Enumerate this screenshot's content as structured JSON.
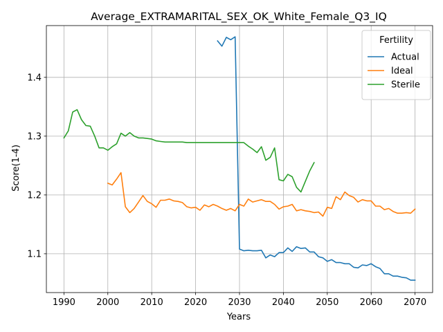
{
  "chart_data": {
    "type": "line",
    "title": "Average_EXTRAMARITAL_SEX_OK_White_Female_Q3_IQ",
    "xlabel": "Years",
    "ylabel": "Score(1-4)",
    "xlim": [
      1986,
      2074
    ],
    "ylim": [
      1.034,
      1.488
    ],
    "x_ticks": [
      1990,
      2000,
      2010,
      2020,
      2030,
      2040,
      2050,
      2060,
      2070
    ],
    "y_ticks": [
      1.1,
      1.2,
      1.3,
      1.4
    ],
    "y_tick_labels": [
      "1.1",
      "1.2",
      "1.3",
      "1.4"
    ],
    "grid": true,
    "legend": {
      "title": "Fertility",
      "position": "top-right"
    },
    "series": [
      {
        "name": "Actual",
        "color": "#1f77b4",
        "x": [
          2025,
          2026,
          2027,
          2028,
          2029,
          2030,
          2031,
          2032,
          2033,
          2034,
          2035,
          2036,
          2037,
          2038,
          2039,
          2040,
          2041,
          2042,
          2043,
          2044,
          2045,
          2046,
          2047,
          2048,
          2049,
          2050,
          2051,
          2052,
          2053,
          2054,
          2055,
          2056,
          2057,
          2058,
          2059,
          2060,
          2061,
          2062,
          2063,
          2064,
          2065,
          2066,
          2067,
          2068,
          2069,
          2070
        ],
        "y": [
          1.462,
          1.453,
          1.468,
          1.464,
          1.469,
          1.108,
          1.105,
          1.106,
          1.105,
          1.105,
          1.106,
          1.093,
          1.098,
          1.095,
          1.102,
          1.102,
          1.11,
          1.104,
          1.112,
          1.109,
          1.11,
          1.103,
          1.103,
          1.095,
          1.093,
          1.087,
          1.09,
          1.085,
          1.085,
          1.083,
          1.083,
          1.077,
          1.076,
          1.081,
          1.08,
          1.083,
          1.078,
          1.075,
          1.066,
          1.066,
          1.062,
          1.062,
          1.06,
          1.059,
          1.055,
          1.055
        ]
      },
      {
        "name": "Ideal",
        "color": "#ff7f0e",
        "x": [
          2000,
          2001,
          2002,
          2003,
          2004,
          2005,
          2006,
          2007,
          2008,
          2009,
          2010,
          2011,
          2012,
          2013,
          2014,
          2015,
          2016,
          2017,
          2018,
          2019,
          2020,
          2021,
          2022,
          2023,
          2024,
          2025,
          2026,
          2027,
          2028,
          2029,
          2030,
          2031,
          2032,
          2033,
          2034,
          2035,
          2036,
          2037,
          2038,
          2039,
          2040,
          2041,
          2042,
          2043,
          2044,
          2045,
          2046,
          2047,
          2048,
          2049,
          2050,
          2051,
          2052,
          2053,
          2054,
          2055,
          2056,
          2057,
          2058,
          2059,
          2060,
          2061,
          2062,
          2063,
          2064,
          2065,
          2066,
          2067,
          2068,
          2069,
          2070
        ],
        "y": [
          1.22,
          1.217,
          1.227,
          1.238,
          1.18,
          1.17,
          1.177,
          1.188,
          1.199,
          1.189,
          1.185,
          1.179,
          1.191,
          1.191,
          1.193,
          1.19,
          1.189,
          1.187,
          1.18,
          1.178,
          1.179,
          1.174,
          1.183,
          1.18,
          1.184,
          1.181,
          1.177,
          1.174,
          1.177,
          1.173,
          1.184,
          1.181,
          1.193,
          1.188,
          1.19,
          1.192,
          1.189,
          1.189,
          1.184,
          1.176,
          1.18,
          1.181,
          1.184,
          1.173,
          1.175,
          1.173,
          1.172,
          1.17,
          1.171,
          1.164,
          1.179,
          1.177,
          1.197,
          1.192,
          1.205,
          1.199,
          1.196,
          1.188,
          1.192,
          1.19,
          1.19,
          1.181,
          1.181,
          1.175,
          1.177,
          1.172,
          1.169,
          1.169,
          1.17,
          1.169,
          1.176
        ]
      },
      {
        "name": "Sterile",
        "color": "#2ca02c",
        "x": [
          1990,
          1991,
          1992,
          1993,
          1994,
          1995,
          1996,
          1997,
          1998,
          1999,
          2000,
          2001,
          2002,
          2003,
          2004,
          2005,
          2006,
          2007,
          2008,
          2009,
          2010,
          2011,
          2012,
          2013,
          2014,
          2015,
          2016,
          2017,
          2018,
          2019,
          2020,
          2021,
          2022,
          2023,
          2024,
          2025,
          2026,
          2027,
          2028,
          2029,
          2030,
          2031,
          2032,
          2033,
          2034,
          2035,
          2036,
          2037,
          2038,
          2039,
          2040,
          2041,
          2042,
          2043,
          2044,
          2045,
          2046,
          2047
        ],
        "y": [
          1.297,
          1.309,
          1.341,
          1.345,
          1.328,
          1.318,
          1.317,
          1.3,
          1.28,
          1.28,
          1.276,
          1.282,
          1.287,
          1.305,
          1.3,
          1.306,
          1.3,
          1.297,
          1.297,
          1.296,
          1.295,
          1.292,
          1.291,
          1.29,
          1.29,
          1.29,
          1.29,
          1.29,
          1.289,
          1.289,
          1.289,
          1.289,
          1.289,
          1.289,
          1.289,
          1.289,
          1.289,
          1.289,
          1.289,
          1.289,
          1.289,
          1.289,
          1.283,
          1.278,
          1.272,
          1.282,
          1.259,
          1.264,
          1.28,
          1.226,
          1.224,
          1.235,
          1.231,
          1.213,
          1.205,
          1.223,
          1.241,
          1.255
        ]
      }
    ]
  }
}
